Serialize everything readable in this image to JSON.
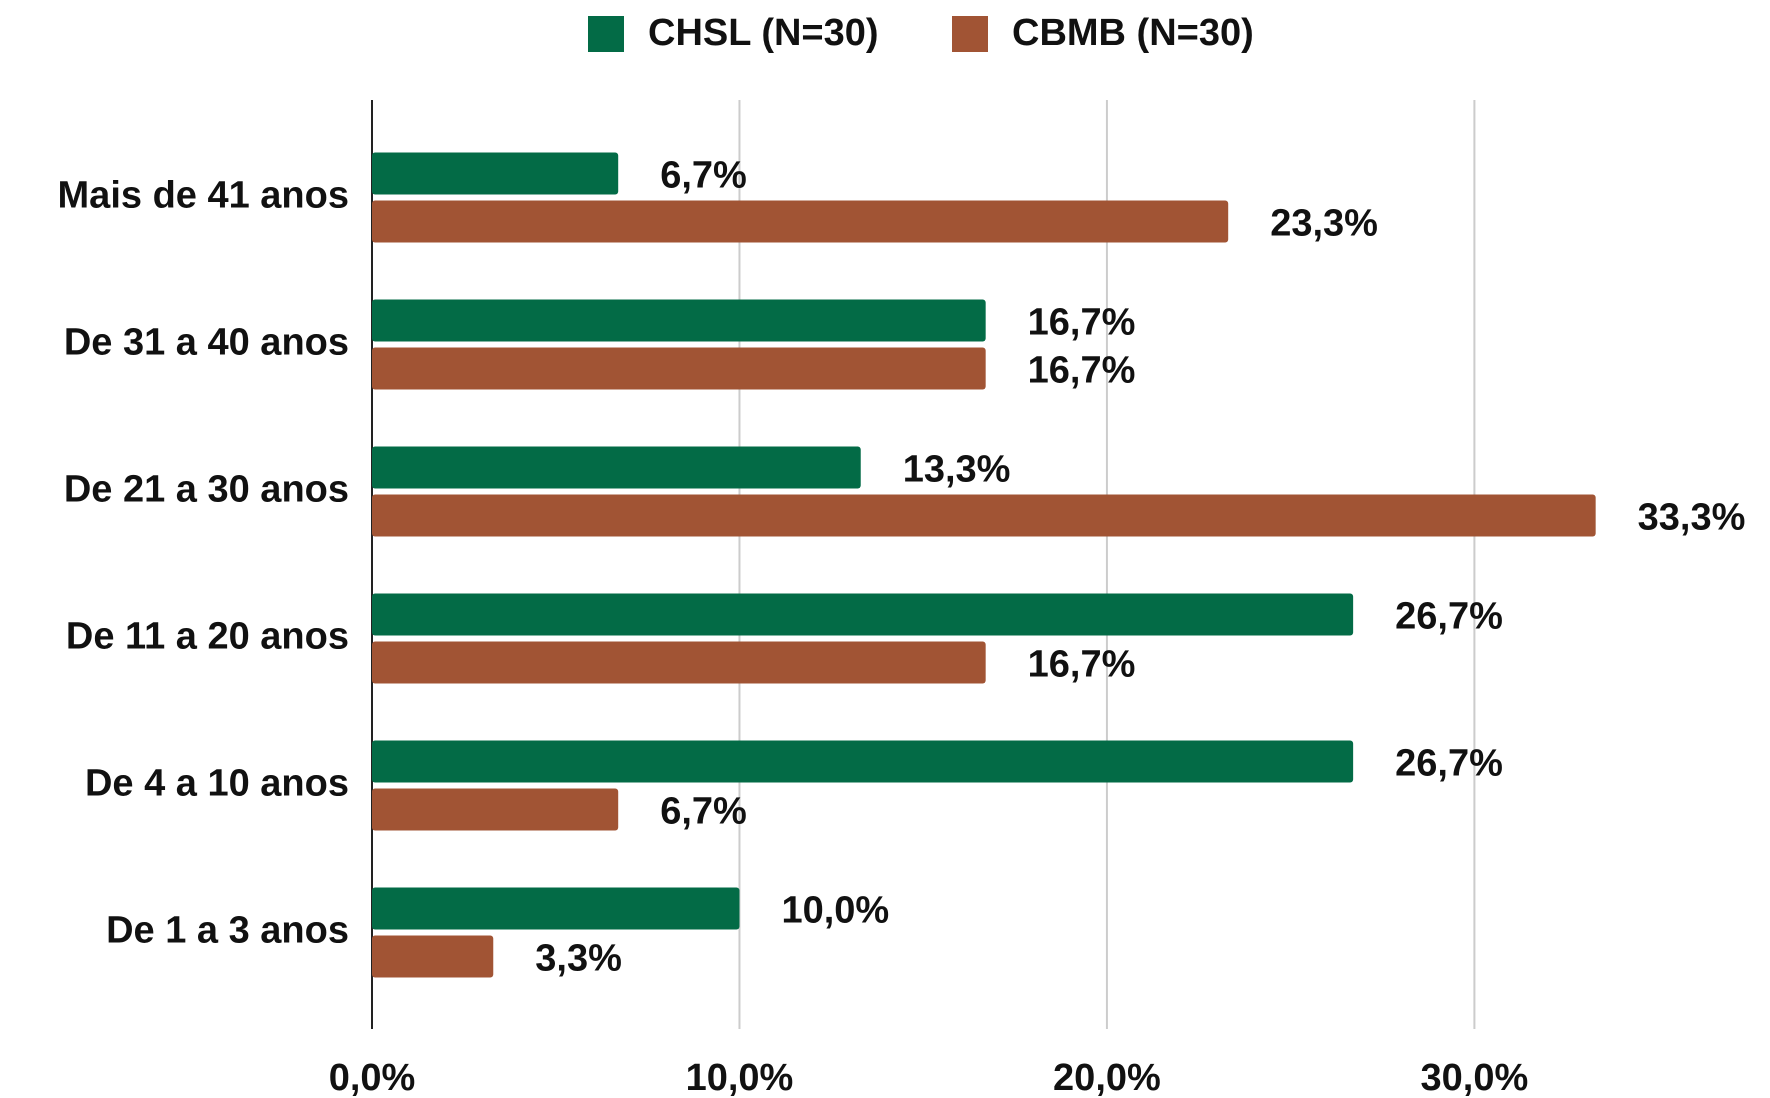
{
  "chart_data": {
    "type": "bar",
    "orientation": "horizontal",
    "categories": [
      "Mais de 41 anos",
      "De 31 a 40 anos",
      "De 21 a 30 anos",
      "De 11 a 20 anos",
      "De 4 a 10 anos",
      "De 1 a 3 anos"
    ],
    "series": [
      {
        "name": "CHSL (N=30)",
        "color": "#036b46",
        "values": [
          6.7,
          16.7,
          13.3,
          26.7,
          26.7,
          10.0
        ],
        "value_labels": [
          "6,7%",
          "16,7%",
          "13,3%",
          "26,7%",
          "26,7%",
          "10,0%"
        ]
      },
      {
        "name": "CBMB (N=30)",
        "color": "#a15434",
        "values": [
          23.3,
          16.7,
          33.3,
          16.7,
          6.7,
          3.3
        ],
        "value_labels": [
          "23,3%",
          "16,7%",
          "33,3%",
          "16,7%",
          "6,7%",
          "3,3%"
        ]
      }
    ],
    "xlim": [
      0,
      37.5
    ],
    "xticks": [
      {
        "value": 0,
        "label": "0,0%"
      },
      {
        "value": 10,
        "label": "10,0%"
      },
      {
        "value": 20,
        "label": "20,0%"
      },
      {
        "value": 30,
        "label": "30,0%"
      }
    ],
    "grid": true,
    "legend": "top"
  }
}
